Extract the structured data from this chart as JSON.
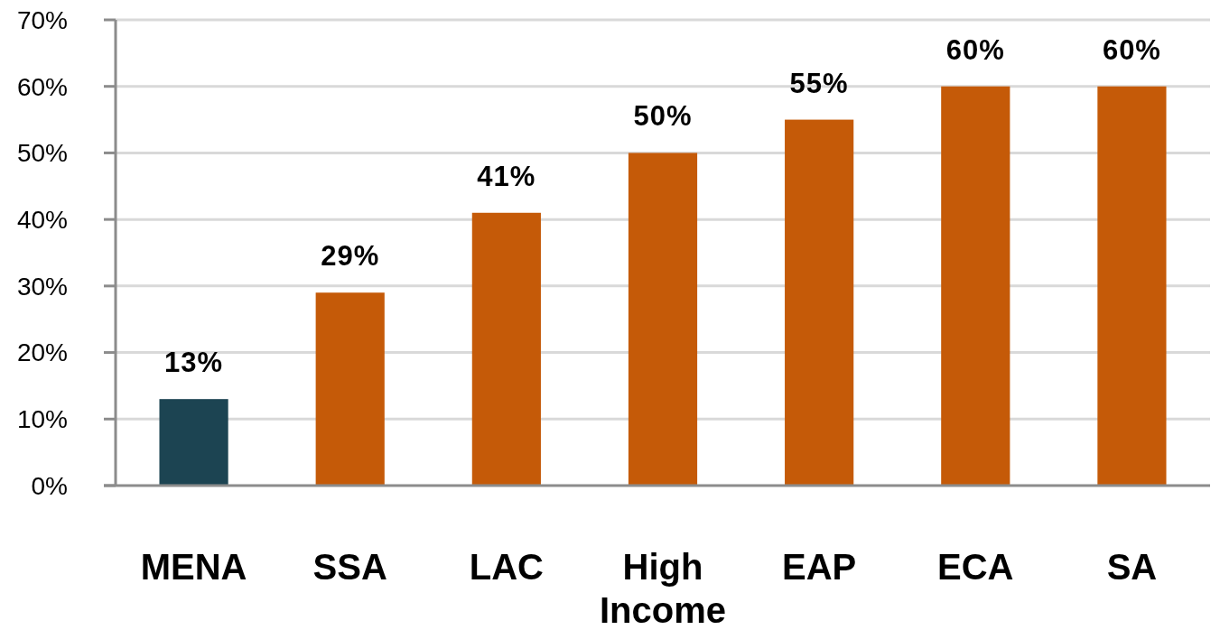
{
  "chart_data": {
    "type": "bar",
    "categories": [
      "MENA",
      "SSA",
      "LAC",
      "High Income",
      "EAP",
      "ECA",
      "SA"
    ],
    "values": [
      13,
      29,
      41,
      50,
      55,
      60,
      60
    ],
    "colors": [
      "#1c4452",
      "#c55a08",
      "#c55a08",
      "#c55a08",
      "#c55a08",
      "#c55a08",
      "#c55a08"
    ],
    "value_labels": [
      "13%",
      "29%",
      "41%",
      "50%",
      "55%",
      "60%",
      "60%"
    ],
    "ylim": [
      0,
      70
    ],
    "yticks": [
      {
        "value": 0,
        "label": "0%"
      },
      {
        "value": 10,
        "label": "10%"
      },
      {
        "value": 20,
        "label": "20%"
      },
      {
        "value": 30,
        "label": "30%"
      },
      {
        "value": 40,
        "label": "40%"
      },
      {
        "value": 50,
        "label": "50%"
      },
      {
        "value": 60,
        "label": "60%"
      },
      {
        "value": 70,
        "label": "70%"
      }
    ],
    "grid": "y"
  }
}
